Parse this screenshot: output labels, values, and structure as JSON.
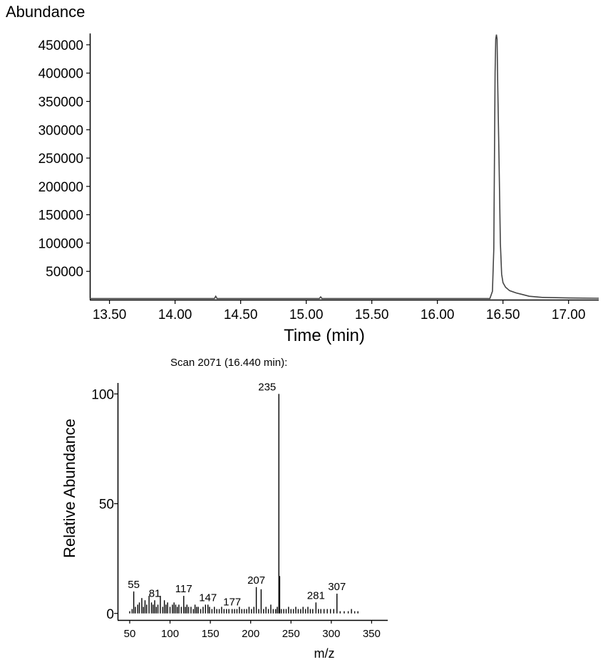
{
  "chart_data": [
    {
      "type": "line",
      "ylabel": "Abundance",
      "xlabel": "Time (min)",
      "xlim": [
        13.35,
        17.23
      ],
      "ylim": [
        0,
        470000
      ],
      "x_ticks": [
        "13.50",
        "14.00",
        "14.50",
        "15.00",
        "15.50",
        "16.00",
        "16.50",
        "17.00"
      ],
      "y_ticks": [
        "50000",
        "100000",
        "150000",
        "200000",
        "250000",
        "300000",
        "350000",
        "400000",
        "450000"
      ],
      "grid": false,
      "series": [
        {
          "x": [
            13.35,
            14.3,
            14.31,
            14.32,
            15.1,
            15.11,
            15.12,
            16.4,
            16.42,
            16.43,
            16.44,
            16.445,
            16.45,
            16.455,
            16.46,
            16.47,
            16.48,
            16.49,
            16.5,
            16.52,
            16.55,
            16.6,
            16.65,
            16.7,
            16.8,
            17.0,
            17.23
          ],
          "y": [
            2000,
            2000,
            6000,
            2000,
            2000,
            5000,
            2000,
            2000,
            15000,
            90000,
            400000,
            460000,
            468000,
            460000,
            380000,
            250000,
            100000,
            45000,
            30000,
            22000,
            16000,
            12000,
            9000,
            6000,
            4000,
            3000,
            2500
          ]
        }
      ]
    },
    {
      "type": "bar",
      "title": "Scan 2071 (16.440 min):",
      "xlabel": "m/z",
      "ylabel": "Relative Abundance",
      "xlim": [
        35,
        370
      ],
      "ylim": [
        -3,
        105
      ],
      "x_ticks": [
        "50",
        "100",
        "150",
        "200",
        "250",
        "300",
        "350"
      ],
      "y_ticks": [
        "0",
        "50",
        "100"
      ],
      "grid": false,
      "peaks": {
        "mz": [
          50,
          53,
          55,
          57,
          60,
          62,
          65,
          67,
          69,
          71,
          74,
          77,
          79,
          81,
          83,
          85,
          88,
          91,
          93,
          95,
          97,
          100,
          103,
          105,
          107,
          109,
          111,
          114,
          117,
          119,
          121,
          123,
          126,
          129,
          131,
          133,
          135,
          138,
          141,
          144,
          147,
          149,
          152,
          155,
          158,
          161,
          164,
          167,
          170,
          173,
          177,
          180,
          183,
          186,
          189,
          192,
          195,
          198,
          201,
          204,
          207,
          210,
          213,
          216,
          219,
          222,
          225,
          228,
          231,
          233,
          235,
          236,
          238,
          241,
          244,
          247,
          250,
          253,
          256,
          259,
          262,
          265,
          268,
          271,
          274,
          277,
          281,
          284,
          287,
          291,
          295,
          299,
          303,
          307,
          311,
          316,
          321,
          325,
          329,
          333
        ],
        "intensity": [
          1,
          2,
          10,
          3,
          4,
          5,
          7,
          3,
          6,
          4,
          8,
          5,
          4,
          6,
          3,
          4,
          8,
          3,
          6,
          4,
          5,
          3,
          4,
          5,
          4,
          3,
          4,
          3,
          8,
          3,
          4,
          3,
          3,
          2,
          4,
          3,
          3,
          2,
          3,
          4,
          4,
          3,
          2,
          3,
          2,
          2,
          3,
          2,
          2,
          2,
          2,
          2,
          2,
          3,
          2,
          2,
          2,
          3,
          2,
          3,
          12,
          2,
          11,
          2,
          3,
          2,
          4,
          2,
          2,
          3,
          100,
          17,
          2,
          2,
          2,
          3,
          2,
          2,
          3,
          2,
          2,
          3,
          2,
          3,
          2,
          2,
          5,
          2,
          2,
          2,
          2,
          2,
          2,
          9,
          1,
          1,
          1,
          2,
          1,
          1
        ]
      },
      "labels": [
        {
          "mz": 55,
          "text": "55"
        },
        {
          "mz": 81,
          "text": "81"
        },
        {
          "mz": 117,
          "text": "117"
        },
        {
          "mz": 147,
          "text": "147"
        },
        {
          "mz": 177,
          "text": "177"
        },
        {
          "mz": 207,
          "text": "207"
        },
        {
          "mz": 235,
          "text": "235"
        },
        {
          "mz": 281,
          "text": "281"
        },
        {
          "mz": 307,
          "text": "307"
        }
      ]
    }
  ]
}
